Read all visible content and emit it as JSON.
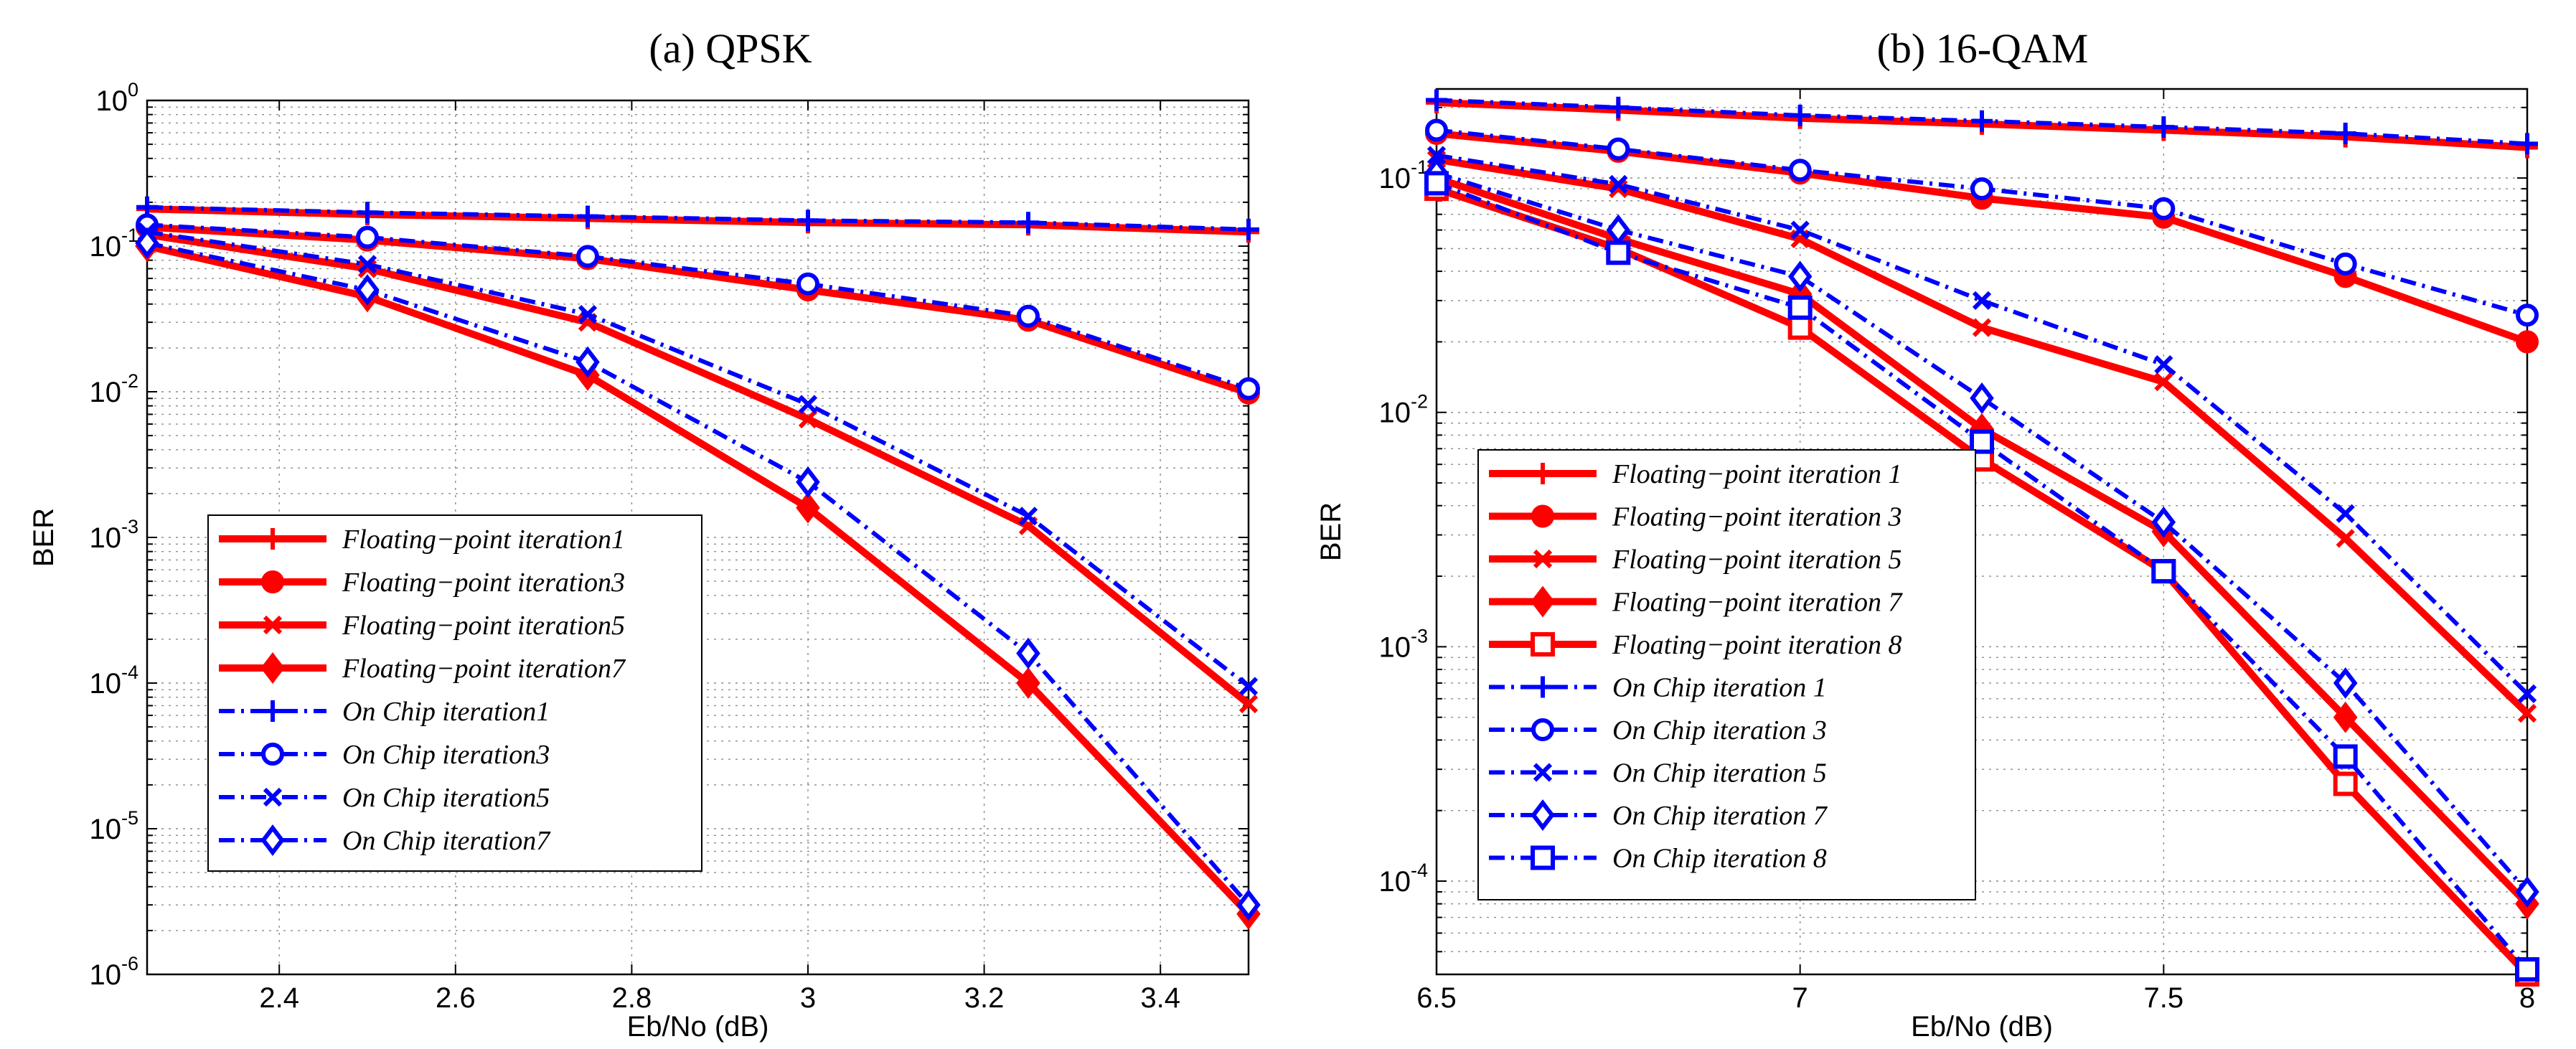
{
  "chart_data": [
    {
      "type": "line",
      "title": "(a)   QPSK",
      "xlabel": "Eb/No (dB)",
      "ylabel": "BER",
      "yscale": "log",
      "xlim": [
        2.25,
        3.5
      ],
      "ylim_exp": [
        -6,
        0
      ],
      "xticks": [
        2.4,
        2.6,
        2.8,
        3,
        3.2,
        3.4
      ],
      "xtick_labels": [
        "2.4",
        "2.6",
        "2.8",
        "3",
        "3.2",
        "3.4"
      ],
      "yticks": [
        {
          "base": "10",
          "exp": "0",
          "value": 1
        },
        {
          "base": "10",
          "exp": "-1",
          "value": 0.1
        },
        {
          "base": "10",
          "exp": "-2",
          "value": 0.01
        },
        {
          "base": "10",
          "exp": "-3",
          "value": 0.001
        },
        {
          "base": "10",
          "exp": "-4",
          "value": 0.0001
        },
        {
          "base": "10",
          "exp": "-5",
          "value": 1e-05
        },
        {
          "base": "10",
          "exp": "-6",
          "value": 1e-06
        }
      ],
      "legend_position": "lower-left",
      "x": [
        2.25,
        2.5,
        2.75,
        3.0,
        3.25,
        3.5
      ],
      "series": [
        {
          "name": "Floating−point iteration1",
          "color": "#ff0000",
          "style": "solid",
          "marker": "plus",
          "values": [
            0.18,
            0.165,
            0.155,
            0.145,
            0.14,
            0.125
          ]
        },
        {
          "name": "Floating−point iteration3",
          "color": "#ff0000",
          "style": "solid",
          "marker": "circle",
          "values": [
            0.135,
            0.11,
            0.082,
            0.05,
            0.031,
            0.0098
          ]
        },
        {
          "name": "Floating−point iteration5",
          "color": "#ff0000",
          "style": "solid",
          "marker": "x",
          "values": [
            0.12,
            0.07,
            0.03,
            0.0065,
            0.0012,
            7.2e-05
          ]
        },
        {
          "name": "Floating−point iteration7",
          "color": "#ff0000",
          "style": "solid",
          "marker": "diamond",
          "values": [
            0.1,
            0.045,
            0.013,
            0.0016,
            0.0001,
            2.6e-06
          ]
        },
        {
          "name": "On Chip iteration1",
          "color": "#0000ff",
          "style": "dashdot",
          "marker": "plus",
          "values": [
            0.185,
            0.17,
            0.16,
            0.15,
            0.145,
            0.13
          ]
        },
        {
          "name": "On Chip iteration3",
          "color": "#0000ff",
          "style": "dashdot",
          "marker": "circle",
          "values": [
            0.14,
            0.115,
            0.085,
            0.055,
            0.033,
            0.0105
          ]
        },
        {
          "name": "On Chip iteration5",
          "color": "#0000ff",
          "style": "dashdot",
          "marker": "x",
          "values": [
            0.125,
            0.075,
            0.034,
            0.0082,
            0.0014,
            9.5e-05
          ]
        },
        {
          "name": "On Chip iteration7",
          "color": "#0000ff",
          "style": "dashdot",
          "marker": "diamond",
          "values": [
            0.105,
            0.05,
            0.016,
            0.0024,
            0.00016,
            3e-06
          ]
        }
      ]
    },
    {
      "type": "line",
      "title": "(b)   16-QAM",
      "xlabel": "Eb/No (dB)",
      "ylabel": "BER",
      "yscale": "log",
      "xlim": [
        6.5,
        8
      ],
      "ylim_exp": [
        -4.398,
        -0.62
      ],
      "xticks": [
        6.5,
        7,
        7.5,
        8
      ],
      "xtick_labels": [
        "6.5",
        "7",
        "7.5",
        "8"
      ],
      "yticks": [
        {
          "base": "10",
          "exp": "-1",
          "value": 0.1
        },
        {
          "base": "10",
          "exp": "-2",
          "value": 0.01
        },
        {
          "base": "10",
          "exp": "-3",
          "value": 0.001
        },
        {
          "base": "10",
          "exp": "-4",
          "value": 0.0001
        }
      ],
      "legend_position": "lower-left",
      "x": [
        6.5,
        6.75,
        7.0,
        7.25,
        7.5,
        7.75,
        8.0
      ],
      "series": [
        {
          "name": "Floating−point iteration 1",
          "color": "#ff0000",
          "style": "solid",
          "marker": "plus",
          "values": [
            0.21,
            0.195,
            0.18,
            0.17,
            0.16,
            0.15,
            0.135
          ]
        },
        {
          "name": "Floating−point iteration 3",
          "color": "#ff0000",
          "style": "solid",
          "marker": "circle",
          "values": [
            0.155,
            0.13,
            0.105,
            0.082,
            0.068,
            0.038,
            0.02
          ]
        },
        {
          "name": "Floating−point iteration 5",
          "color": "#ff0000",
          "style": "solid",
          "marker": "x",
          "values": [
            0.12,
            0.09,
            0.055,
            0.023,
            0.0135,
            0.0029,
            0.00052
          ]
        },
        {
          "name": "Floating−point iteration 7",
          "color": "#ff0000",
          "style": "solid",
          "marker": "diamond",
          "values": [
            0.1,
            0.055,
            0.032,
            0.0085,
            0.0031,
            0.0005,
            8e-05
          ]
        },
        {
          "name": "Floating−point iteration 8",
          "color": "#ff0000",
          "style": "solid",
          "marker": "square",
          "values": [
            0.09,
            0.05,
            0.023,
            0.0063,
            0.0021,
            0.00026,
            4e-05
          ]
        },
        {
          "name": "On Chip iteration 1",
          "color": "#0000ff",
          "style": "dashdot",
          "marker": "plus",
          "values": [
            0.215,
            0.2,
            0.185,
            0.175,
            0.165,
            0.155,
            0.14
          ]
        },
        {
          "name": "On Chip iteration 3",
          "color": "#0000ff",
          "style": "dashdot",
          "marker": "circle",
          "values": [
            0.16,
            0.133,
            0.108,
            0.09,
            0.074,
            0.043,
            0.026
          ]
        },
        {
          "name": "On Chip iteration 5",
          "color": "#0000ff",
          "style": "dashdot",
          "marker": "x",
          "values": [
            0.125,
            0.094,
            0.06,
            0.03,
            0.016,
            0.0037,
            0.00063
          ]
        },
        {
          "name": "On Chip iteration 7",
          "color": "#0000ff",
          "style": "dashdot",
          "marker": "diamond",
          "values": [
            0.105,
            0.06,
            0.038,
            0.0115,
            0.0034,
            0.0007,
            9e-05
          ]
        },
        {
          "name": "On Chip iteration 8",
          "color": "#0000ff",
          "style": "dashdot",
          "marker": "square",
          "values": [
            0.095,
            0.048,
            0.028,
            0.0075,
            0.0021,
            0.00034,
            4.2e-05
          ]
        }
      ]
    }
  ]
}
